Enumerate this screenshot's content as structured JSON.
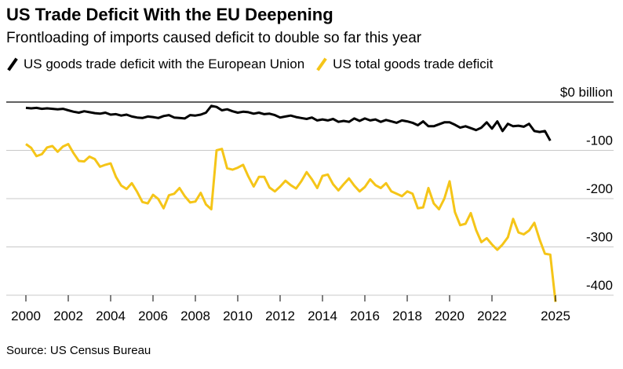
{
  "title": "US Trade Deficit With the EU Deepening",
  "subtitle": "Frontloading of imports caused deficit to double so far this year",
  "source": "Source: US Census Bureau",
  "colors": {
    "eu": "#000000",
    "total": "#f5c518",
    "axis": "#000000",
    "grid": "#c8c8c8"
  },
  "chart_data": {
    "type": "line",
    "title": "US Trade Deficit With the EU Deepening",
    "subtitle": "Frontloading of imports caused deficit to double so far this year",
    "xlabel": "",
    "ylabel": "",
    "xlim": [
      2000,
      2025.1
    ],
    "ylim": [
      -440,
      0
    ],
    "x_ticks": [
      {
        "value": 2000,
        "label": "2000"
      },
      {
        "value": 2002,
        "label": "2002"
      },
      {
        "value": 2004,
        "label": "2004"
      },
      {
        "value": 2006,
        "label": "2006"
      },
      {
        "value": 2008,
        "label": "2008"
      },
      {
        "value": 2010,
        "label": "2010"
      },
      {
        "value": 2012,
        "label": "2012"
      },
      {
        "value": 2014,
        "label": "2014"
      },
      {
        "value": 2016,
        "label": "2016"
      },
      {
        "value": 2018,
        "label": "2018"
      },
      {
        "value": 2020,
        "label": "2020"
      },
      {
        "value": 2022,
        "label": "2022"
      },
      {
        "value": 2025,
        "label": "2025"
      }
    ],
    "y_ticks": [
      {
        "value": 0,
        "label": "$0 billion"
      },
      {
        "value": -100,
        "label": "-100"
      },
      {
        "value": -200,
        "label": "-200"
      },
      {
        "value": -300,
        "label": "-300"
      },
      {
        "value": -400,
        "label": "-400"
      }
    ],
    "grid": true,
    "legend_position": "top-left",
    "series": [
      {
        "name": "US goods trade deficit with the European Union",
        "color": "#000000",
        "points": [
          [
            2000,
            -12
          ],
          [
            2000.25,
            -13
          ],
          [
            2000.5,
            -12
          ],
          [
            2000.75,
            -14
          ],
          [
            2001,
            -13
          ],
          [
            2001.25,
            -14
          ],
          [
            2001.5,
            -15
          ],
          [
            2001.75,
            -14
          ],
          [
            2002,
            -17
          ],
          [
            2002.25,
            -20
          ],
          [
            2002.5,
            -22
          ],
          [
            2002.75,
            -19
          ],
          [
            2003,
            -21
          ],
          [
            2003.25,
            -23
          ],
          [
            2003.5,
            -24
          ],
          [
            2003.75,
            -22
          ],
          [
            2004,
            -26
          ],
          [
            2004.25,
            -25
          ],
          [
            2004.5,
            -28
          ],
          [
            2004.75,
            -26
          ],
          [
            2005,
            -30
          ],
          [
            2005.25,
            -32
          ],
          [
            2005.5,
            -33
          ],
          [
            2005.75,
            -30
          ],
          [
            2006,
            -31
          ],
          [
            2006.25,
            -33
          ],
          [
            2006.5,
            -29
          ],
          [
            2006.75,
            -27
          ],
          [
            2007,
            -32
          ],
          [
            2007.25,
            -33
          ],
          [
            2007.5,
            -34
          ],
          [
            2007.75,
            -27
          ],
          [
            2008,
            -28
          ],
          [
            2008.25,
            -26
          ],
          [
            2008.5,
            -22
          ],
          [
            2008.75,
            -8
          ],
          [
            2009,
            -10
          ],
          [
            2009.25,
            -17
          ],
          [
            2009.5,
            -15
          ],
          [
            2009.75,
            -19
          ],
          [
            2010,
            -22
          ],
          [
            2010.25,
            -20
          ],
          [
            2010.5,
            -21
          ],
          [
            2010.75,
            -24
          ],
          [
            2011,
            -22
          ],
          [
            2011.25,
            -25
          ],
          [
            2011.5,
            -24
          ],
          [
            2011.75,
            -27
          ],
          [
            2012,
            -32
          ],
          [
            2012.25,
            -30
          ],
          [
            2012.5,
            -28
          ],
          [
            2012.75,
            -31
          ],
          [
            2013,
            -33
          ],
          [
            2013.25,
            -35
          ],
          [
            2013.5,
            -32
          ],
          [
            2013.75,
            -38
          ],
          [
            2014,
            -36
          ],
          [
            2014.25,
            -38
          ],
          [
            2014.5,
            -35
          ],
          [
            2014.75,
            -41
          ],
          [
            2015,
            -39
          ],
          [
            2015.25,
            -41
          ],
          [
            2015.5,
            -34
          ],
          [
            2015.75,
            -39
          ],
          [
            2016,
            -34
          ],
          [
            2016.25,
            -38
          ],
          [
            2016.5,
            -36
          ],
          [
            2016.75,
            -41
          ],
          [
            2017,
            -37
          ],
          [
            2017.25,
            -40
          ],
          [
            2017.5,
            -43
          ],
          [
            2017.75,
            -38
          ],
          [
            2018,
            -40
          ],
          [
            2018.25,
            -43
          ],
          [
            2018.5,
            -48
          ],
          [
            2018.75,
            -40
          ],
          [
            2019,
            -50
          ],
          [
            2019.25,
            -50
          ],
          [
            2019.5,
            -46
          ],
          [
            2019.75,
            -42
          ],
          [
            2020,
            -42
          ],
          [
            2020.25,
            -47
          ],
          [
            2020.5,
            -53
          ],
          [
            2020.75,
            -50
          ],
          [
            2021,
            -54
          ],
          [
            2021.25,
            -58
          ],
          [
            2021.5,
            -53
          ],
          [
            2021.75,
            -42
          ],
          [
            2022,
            -55
          ],
          [
            2022.25,
            -40
          ],
          [
            2022.5,
            -60
          ],
          [
            2022.75,
            -45
          ],
          [
            2023,
            -50
          ],
          [
            2023.25,
            -49
          ],
          [
            2023.5,
            -51
          ],
          [
            2023.75,
            -45
          ],
          [
            2024,
            -60
          ],
          [
            2024.25,
            -62
          ],
          [
            2024.5,
            -60
          ],
          [
            2024.75,
            -80
          ]
        ]
      },
      {
        "name": "US total goods trade deficit",
        "color": "#f5c518",
        "points": [
          [
            2000,
            -87
          ],
          [
            2000.25,
            -95
          ],
          [
            2000.5,
            -112
          ],
          [
            2000.75,
            -108
          ],
          [
            2001,
            -94
          ],
          [
            2001.25,
            -91
          ],
          [
            2001.5,
            -103
          ],
          [
            2001.75,
            -92
          ],
          [
            2002,
            -87
          ],
          [
            2002.25,
            -106
          ],
          [
            2002.5,
            -122
          ],
          [
            2002.75,
            -123
          ],
          [
            2003,
            -113
          ],
          [
            2003.25,
            -118
          ],
          [
            2003.5,
            -134
          ],
          [
            2003.75,
            -130
          ],
          [
            2004,
            -127
          ],
          [
            2004.25,
            -155
          ],
          [
            2004.5,
            -173
          ],
          [
            2004.75,
            -180
          ],
          [
            2005,
            -168
          ],
          [
            2005.25,
            -186
          ],
          [
            2005.5,
            -207
          ],
          [
            2005.75,
            -210
          ],
          [
            2006,
            -192
          ],
          [
            2006.25,
            -201
          ],
          [
            2006.5,
            -220
          ],
          [
            2006.75,
            -193
          ],
          [
            2007,
            -190
          ],
          [
            2007.25,
            -178
          ],
          [
            2007.5,
            -195
          ],
          [
            2007.75,
            -208
          ],
          [
            2008,
            -206
          ],
          [
            2008.25,
            -188
          ],
          [
            2008.5,
            -212
          ],
          [
            2008.75,
            -222
          ],
          [
            2009,
            -100
          ],
          [
            2009.25,
            -97
          ],
          [
            2009.5,
            -137
          ],
          [
            2009.75,
            -140
          ],
          [
            2010,
            -136
          ],
          [
            2010.25,
            -130
          ],
          [
            2010.5,
            -154
          ],
          [
            2010.75,
            -175
          ],
          [
            2011,
            -155
          ],
          [
            2011.25,
            -155
          ],
          [
            2011.5,
            -177
          ],
          [
            2011.75,
            -185
          ],
          [
            2012,
            -175
          ],
          [
            2012.25,
            -163
          ],
          [
            2012.5,
            -172
          ],
          [
            2012.75,
            -179
          ],
          [
            2013,
            -164
          ],
          [
            2013.25,
            -145
          ],
          [
            2013.5,
            -160
          ],
          [
            2013.75,
            -178
          ],
          [
            2014,
            -153
          ],
          [
            2014.25,
            -150
          ],
          [
            2014.5,
            -170
          ],
          [
            2014.75,
            -183
          ],
          [
            2015,
            -170
          ],
          [
            2015.25,
            -158
          ],
          [
            2015.5,
            -173
          ],
          [
            2015.75,
            -185
          ],
          [
            2016,
            -176
          ],
          [
            2016.25,
            -160
          ],
          [
            2016.5,
            -172
          ],
          [
            2016.75,
            -178
          ],
          [
            2017,
            -168
          ],
          [
            2017.25,
            -185
          ],
          [
            2017.5,
            -190
          ],
          [
            2017.75,
            -195
          ],
          [
            2018,
            -185
          ],
          [
            2018.25,
            -190
          ],
          [
            2018.5,
            -220
          ],
          [
            2018.75,
            -218
          ],
          [
            2019,
            -178
          ],
          [
            2019.25,
            -210
          ],
          [
            2019.5,
            -222
          ],
          [
            2019.75,
            -200
          ],
          [
            2020,
            -164
          ],
          [
            2020.25,
            -228
          ],
          [
            2020.5,
            -255
          ],
          [
            2020.75,
            -252
          ],
          [
            2021,
            -230
          ],
          [
            2021.25,
            -265
          ],
          [
            2021.5,
            -290
          ],
          [
            2021.75,
            -282
          ],
          [
            2022,
            -295
          ],
          [
            2022.25,
            -306
          ],
          [
            2022.5,
            -295
          ],
          [
            2022.75,
            -280
          ],
          [
            2023,
            -242
          ],
          [
            2023.25,
            -270
          ],
          [
            2023.5,
            -274
          ],
          [
            2023.75,
            -266
          ],
          [
            2024,
            -250
          ],
          [
            2024.25,
            -285
          ],
          [
            2024.5,
            -314
          ],
          [
            2024.75,
            -316
          ],
          [
            2025,
            -414
          ]
        ]
      }
    ]
  }
}
